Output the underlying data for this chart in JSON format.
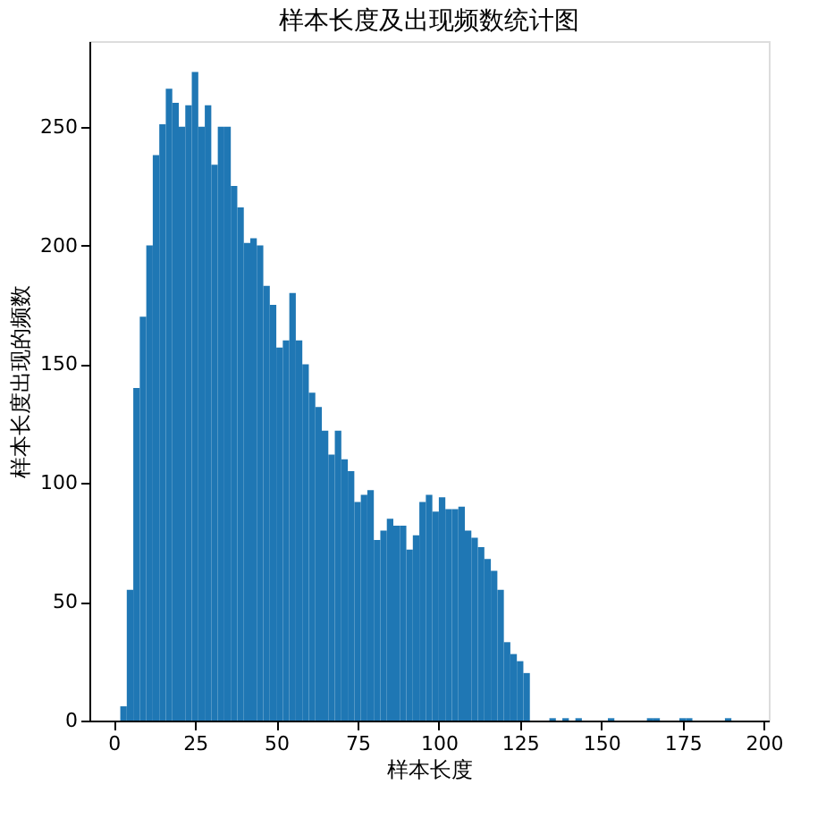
{
  "chart_data": {
    "type": "histogram",
    "title": "样本长度及出现频数统计图",
    "xlabel": "样本长度",
    "ylabel": "样本长度出现的频数",
    "bins": [
      2,
      4,
      6,
      8,
      10,
      12,
      14,
      16,
      18,
      20,
      22,
      24,
      26,
      28,
      30,
      32,
      34,
      36,
      38,
      40,
      42,
      44,
      46,
      48,
      50,
      52,
      54,
      56,
      58,
      60,
      62,
      64,
      66,
      68,
      70,
      72,
      74,
      76,
      78,
      80,
      82,
      84,
      86,
      88,
      90,
      92,
      94,
      96,
      98,
      100,
      102,
      104,
      106,
      108,
      110,
      112,
      114,
      116,
      118,
      120,
      122,
      124,
      126,
      128,
      130,
      132,
      134,
      136,
      138,
      140,
      142,
      144,
      146,
      148,
      150,
      152,
      154,
      156,
      158,
      160,
      162,
      164,
      166,
      168,
      170,
      172,
      174,
      176,
      178,
      180,
      182,
      184,
      186,
      188,
      190,
      192
    ],
    "values": [
      6,
      55,
      140,
      170,
      200,
      238,
      251,
      266,
      260,
      250,
      259,
      273,
      250,
      259,
      234,
      250,
      250,
      225,
      216,
      201,
      203,
      200,
      183,
      175,
      157,
      160,
      180,
      160,
      150,
      138,
      132,
      122,
      112,
      122,
      110,
      105,
      92,
      95,
      97,
      76,
      80,
      85,
      82,
      82,
      72,
      78,
      92,
      95,
      88,
      94,
      89,
      89,
      90,
      80,
      77,
      73,
      68,
      63,
      55,
      33,
      28,
      25,
      20,
      0,
      0,
      0,
      1,
      0,
      1,
      0,
      1,
      0,
      0,
      0,
      0,
      1,
      0,
      0,
      0,
      0,
      0,
      1,
      1,
      0,
      0,
      0,
      1,
      1,
      0,
      0,
      0,
      0,
      0,
      1,
      0
    ],
    "color": "#1f77b4",
    "xlim": [
      -7.5,
      201.5
    ],
    "ylim": [
      0,
      286
    ],
    "xticks": [
      0,
      25,
      50,
      75,
      100,
      125,
      150,
      175,
      200
    ],
    "yticks": [
      0,
      50,
      100,
      150,
      200,
      250
    ],
    "grid": false
  }
}
